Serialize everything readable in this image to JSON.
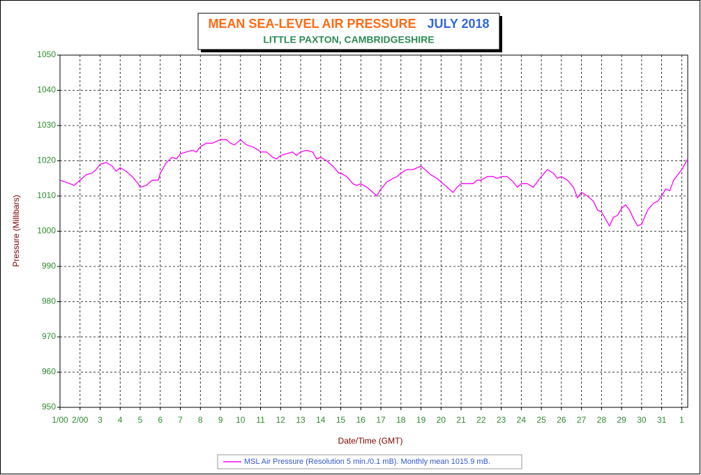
{
  "chart_data": {
    "type": "line",
    "title": "MEAN SEA-LEVEL AIR PRESSURE",
    "title_period": "JULY 2018",
    "subtitle": "LITTLE PAXTON, CAMBRIDGESHIRE",
    "x_label": "Date/Time (GMT)",
    "y_label": "Pressure (Millibars)",
    "xlim": [
      0,
      31.3
    ],
    "ylim": [
      950,
      1050
    ],
    "xticks": [
      {
        "value": 0,
        "label": "1/00"
      },
      {
        "value": 1,
        "label": "2/00"
      },
      {
        "value": 2,
        "label": "3"
      },
      {
        "value": 3,
        "label": "4"
      },
      {
        "value": 4,
        "label": "5"
      },
      {
        "value": 5,
        "label": "6"
      },
      {
        "value": 6,
        "label": "7"
      },
      {
        "value": 7,
        "label": "8"
      },
      {
        "value": 8,
        "label": "9"
      },
      {
        "value": 9,
        "label": "10"
      },
      {
        "value": 10,
        "label": "11"
      },
      {
        "value": 11,
        "label": "12"
      },
      {
        "value": 12,
        "label": "13"
      },
      {
        "value": 13,
        "label": "14"
      },
      {
        "value": 14,
        "label": "15"
      },
      {
        "value": 15,
        "label": "16"
      },
      {
        "value": 16,
        "label": "17"
      },
      {
        "value": 17,
        "label": "18"
      },
      {
        "value": 18,
        "label": "19"
      },
      {
        "value": 19,
        "label": "20"
      },
      {
        "value": 20,
        "label": "21"
      },
      {
        "value": 21,
        "label": "22"
      },
      {
        "value": 22,
        "label": "23"
      },
      {
        "value": 23,
        "label": "24"
      },
      {
        "value": 24,
        "label": "25"
      },
      {
        "value": 25,
        "label": "26"
      },
      {
        "value": 26,
        "label": "27"
      },
      {
        "value": 27,
        "label": "28"
      },
      {
        "value": 28,
        "label": "29"
      },
      {
        "value": 29,
        "label": "30"
      },
      {
        "value": 30,
        "label": "31"
      },
      {
        "value": 31,
        "label": "1"
      }
    ],
    "yticks": [
      950,
      960,
      970,
      980,
      990,
      1000,
      1010,
      1020,
      1030,
      1040,
      1050
    ],
    "grid": true,
    "legend": "bottom",
    "series": [
      {
        "name": "MSL Air Pressure (Resolution 5 min./0.1 mB). Monthly mean 1015.9 mB.",
        "color": "#ff00ff",
        "x": [
          0,
          0.5,
          0.7,
          1,
          1.3,
          1.6,
          1.8,
          2,
          2.3,
          2.6,
          2.8,
          3,
          3.3,
          3.6,
          3.9,
          4,
          4.3,
          4.6,
          4.9,
          5,
          5.3,
          5.6,
          5.8,
          6,
          6.3,
          6.6,
          6.8,
          7,
          7.3,
          7.6,
          7.8,
          8,
          8.3,
          8.5,
          8.7,
          9,
          9.3,
          9.6,
          9.9,
          10,
          10.3,
          10.6,
          10.8,
          11,
          11.3,
          11.6,
          11.8,
          12,
          12.3,
          12.6,
          12.8,
          13,
          13.3,
          13.6,
          13.9,
          14,
          14.3,
          14.6,
          14.8,
          15,
          15.3,
          15.6,
          15.8,
          16,
          16.3,
          16.6,
          16.8,
          17,
          17.3,
          17.6,
          17.8,
          18,
          18.2,
          18.5,
          18.8,
          19,
          19.3,
          19.6,
          19.8,
          20,
          20.3,
          20.6,
          20.8,
          21,
          21.3,
          21.6,
          21.8,
          22,
          22.3,
          22.6,
          22.8,
          23,
          23.3,
          23.6,
          23.8,
          24,
          24.3,
          24.6,
          24.8,
          25,
          25.3,
          25.6,
          25.8,
          26,
          26.3,
          26.6,
          26.8,
          27,
          27.2,
          27.4,
          27.6,
          27.8,
          28,
          28.2,
          28.4,
          28.6,
          28.8,
          29,
          29.3,
          29.6,
          29.8,
          30,
          30.2,
          30.4,
          30.6,
          30.8,
          31,
          31.15,
          31.3
        ],
        "values": [
          1014.5,
          1013.5,
          1013,
          1014.5,
          1016,
          1016.5,
          1017.5,
          1019,
          1019.5,
          1018.5,
          1017,
          1018,
          1017,
          1015.5,
          1013.5,
          1012.5,
          1013,
          1014.5,
          1014.5,
          1016.5,
          1019.5,
          1021,
          1020.5,
          1022,
          1022.5,
          1023,
          1022.5,
          1024,
          1025,
          1025,
          1025.5,
          1026,
          1026,
          1025,
          1024.5,
          1026,
          1024.5,
          1024,
          1023,
          1022.5,
          1022.5,
          1021,
          1020.5,
          1021.5,
          1022,
          1022.5,
          1021.5,
          1022.5,
          1023,
          1022.5,
          1020.5,
          1021,
          1020,
          1018.5,
          1016.5,
          1016.5,
          1015.5,
          1013.5,
          1013,
          1013.5,
          1012.5,
          1011,
          1010,
          1012,
          1014,
          1015,
          1015.5,
          1016.5,
          1017.5,
          1017.5,
          1018,
          1018.5,
          1017.5,
          1016,
          1015,
          1014,
          1012.5,
          1011,
          1012.5,
          1013.5,
          1013.5,
          1013.5,
          1014.5,
          1014.5,
          1015.5,
          1015.5,
          1015,
          1015.5,
          1015.5,
          1014,
          1012.5,
          1013.5,
          1013.5,
          1012.5,
          1014,
          1015.5,
          1017.5,
          1016.5,
          1015,
          1015.5,
          1014.5,
          1012.5,
          1009.5,
          1011,
          1010,
          1008.5,
          1006,
          1005.5,
          1003.5,
          1001.5,
          1004,
          1004.5,
          1006.5,
          1007.5,
          1006,
          1003.5,
          1001.5,
          1002,
          1006,
          1008,
          1008.5,
          1010,
          1012,
          1011.5,
          1014.5,
          1016,
          1017.5,
          1019,
          1020.5
        ]
      }
    ]
  }
}
